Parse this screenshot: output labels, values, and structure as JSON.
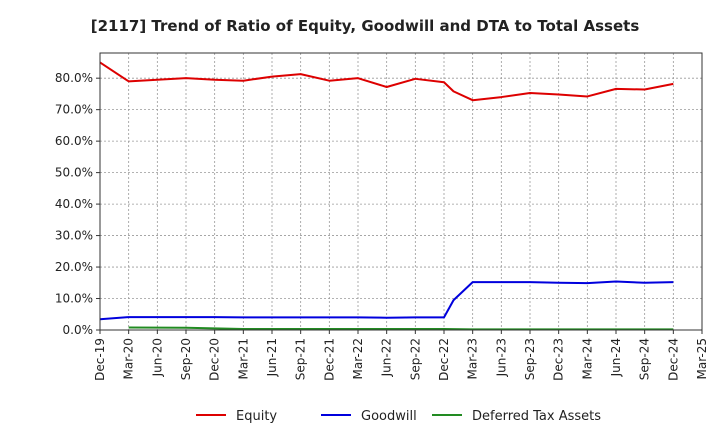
{
  "chart_data": {
    "type": "line",
    "title": "[2117]  Trend of Ratio of Equity, Goodwill and DTA to Total Assets",
    "xlabel": "",
    "ylabel": "",
    "ylim": [
      0,
      88
    ],
    "yticks": [
      0,
      10,
      20,
      30,
      40,
      50,
      60,
      70,
      80
    ],
    "ytick_labels": [
      "0.0%",
      "10.0%",
      "20.0%",
      "30.0%",
      "40.0%",
      "50.0%",
      "60.0%",
      "70.0%",
      "80.0%"
    ],
    "x_tick_labels": [
      "Dec-19",
      "Mar-20",
      "Jun-20",
      "Sep-20",
      "Dec-20",
      "Mar-21",
      "Jun-21",
      "Sep-21",
      "Dec-21",
      "Mar-22",
      "Jun-22",
      "Sep-22",
      "Dec-22",
      "Mar-23",
      "Jun-23",
      "Sep-23",
      "Dec-23",
      "Mar-24",
      "Jun-24",
      "Sep-24",
      "Dec-24",
      "Mar-25"
    ],
    "grid": true,
    "legend_position": "bottom",
    "series": [
      {
        "name": "Equity",
        "color": "#dd0000",
        "points": [
          [
            "Dec-19",
            85.0
          ],
          [
            "Mar-20",
            79.0
          ],
          [
            "Jun-20",
            79.5
          ],
          [
            "Sep-20",
            80.0
          ],
          [
            "Dec-20",
            79.5
          ],
          [
            "Mar-21",
            79.2
          ],
          [
            "Jun-21",
            80.5
          ],
          [
            "Sep-21",
            81.3
          ],
          [
            "Dec-21",
            79.2
          ],
          [
            "Mar-22",
            80.0
          ],
          [
            "Jun-22",
            77.2
          ],
          [
            "Sep-22",
            79.8
          ],
          [
            "Dec-22",
            78.7
          ],
          [
            "Jan-23",
            75.8
          ],
          [
            "Mar-23",
            73.0
          ],
          [
            "Jun-23",
            74.0
          ],
          [
            "Sep-23",
            75.3
          ],
          [
            "Dec-23",
            74.8
          ],
          [
            "Mar-24",
            74.2
          ],
          [
            "Jun-24",
            76.6
          ],
          [
            "Sep-24",
            76.4
          ],
          [
            "Dec-24",
            78.2
          ]
        ]
      },
      {
        "name": "Goodwill",
        "color": "#0000dd",
        "points": [
          [
            "Dec-19",
            3.4
          ],
          [
            "Mar-20",
            4.1
          ],
          [
            "Jun-20",
            4.1
          ],
          [
            "Sep-20",
            4.1
          ],
          [
            "Dec-20",
            4.1
          ],
          [
            "Mar-21",
            4.0
          ],
          [
            "Jun-21",
            4.0
          ],
          [
            "Sep-21",
            4.0
          ],
          [
            "Dec-21",
            4.0
          ],
          [
            "Mar-22",
            4.0
          ],
          [
            "Jun-22",
            3.9
          ],
          [
            "Sep-22",
            4.0
          ],
          [
            "Dec-22",
            4.0
          ],
          [
            "Jan-23",
            9.5
          ],
          [
            "Mar-23",
            15.2
          ],
          [
            "Jun-23",
            15.2
          ],
          [
            "Sep-23",
            15.2
          ],
          [
            "Dec-23",
            15.0
          ],
          [
            "Mar-24",
            14.9
          ],
          [
            "Jun-24",
            15.4
          ],
          [
            "Sep-24",
            15.0
          ],
          [
            "Dec-24",
            15.2
          ]
        ]
      },
      {
        "name": "Deferred Tax Assets",
        "color": "#228b22",
        "points": [
          [
            "Mar-20",
            0.8
          ],
          [
            "Jun-20",
            0.75
          ],
          [
            "Sep-20",
            0.7
          ],
          [
            "Dec-20",
            0.5
          ],
          [
            "Mar-21",
            0.3
          ],
          [
            "Jun-21",
            0.3
          ],
          [
            "Sep-21",
            0.3
          ],
          [
            "Dec-21",
            0.3
          ],
          [
            "Mar-22",
            0.3
          ],
          [
            "Jun-22",
            0.3
          ],
          [
            "Sep-22",
            0.3
          ],
          [
            "Dec-22",
            0.3
          ],
          [
            "Mar-23",
            0.2
          ],
          [
            "Jun-23",
            0.2
          ],
          [
            "Sep-23",
            0.2
          ],
          [
            "Dec-23",
            0.2
          ],
          [
            "Mar-24",
            0.2
          ],
          [
            "Jun-24",
            0.2
          ],
          [
            "Sep-24",
            0.2
          ],
          [
            "Dec-24",
            0.2
          ]
        ]
      }
    ]
  }
}
